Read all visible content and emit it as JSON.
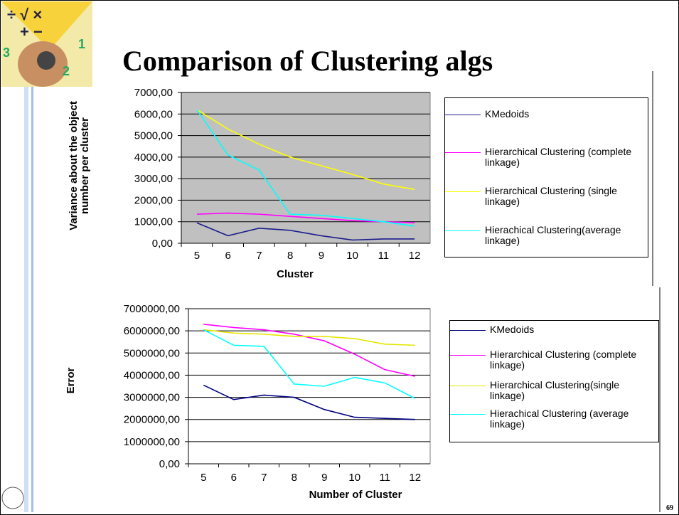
{
  "title": "Comparison of Clustering algs",
  "page_number": "69",
  "chart_data": [
    {
      "type": "line",
      "x_label": "Cluster",
      "y_label": "Variance about the object number per cluster",
      "categories": [
        "5",
        "6",
        "7",
        "8",
        "9",
        "10",
        "11",
        "12"
      ],
      "ylim": [
        0,
        7000
      ],
      "yticks": [
        {
          "value": 0,
          "label": "0,00"
        },
        {
          "value": 1000,
          "label": "1000,00"
        },
        {
          "value": 2000,
          "label": "2000,00"
        },
        {
          "value": 3000,
          "label": "3000,00"
        },
        {
          "value": 4000,
          "label": "4000,00"
        },
        {
          "value": 5000,
          "label": "5000,00"
        },
        {
          "value": 6000,
          "label": "6000,00"
        },
        {
          "value": 7000,
          "label": "7000,00"
        }
      ],
      "grid": true,
      "plot_background": "#c0c0c0",
      "series": [
        {
          "name": "KMedoids",
          "color": "#1c1c8c",
          "values": [
            950,
            350,
            700,
            600,
            350,
            150,
            200,
            200
          ]
        },
        {
          "name": "Hierarchical Clustering (complete linkage)",
          "color": "#ff00ff",
          "values": [
            1350,
            1400,
            1350,
            1250,
            1150,
            1050,
            1000,
            950
          ]
        },
        {
          "name": "Hierarchical Clustering (single linkage)",
          "color": "#ffff00",
          "values": [
            6200,
            5300,
            4600,
            4000,
            3600,
            3200,
            2750,
            2500
          ]
        },
        {
          "name": "Hierachical Clustering(average linkage)",
          "color": "#00ffff",
          "values": [
            6200,
            4100,
            3400,
            1350,
            1300,
            1150,
            1000,
            800
          ]
        }
      ]
    },
    {
      "type": "line",
      "x_label": "Number of Cluster",
      "y_label": "Error",
      "categories": [
        "5",
        "6",
        "7",
        "8",
        "9",
        "10",
        "11",
        "12"
      ],
      "ylim": [
        0,
        7000000
      ],
      "yticks": [
        {
          "value": 0,
          "label": "0,00"
        },
        {
          "value": 1000000,
          "label": "1000000,00"
        },
        {
          "value": 2000000,
          "label": "2000000,00"
        },
        {
          "value": 3000000,
          "label": "3000000,00"
        },
        {
          "value": 4000000,
          "label": "4000000,00"
        },
        {
          "value": 5000000,
          "label": "5000000,00"
        },
        {
          "value": 6000000,
          "label": "6000000,00"
        },
        {
          "value": 7000000,
          "label": "7000000,00"
        }
      ],
      "grid": true,
      "plot_background": "#ffffff",
      "series": [
        {
          "name": "KMedoids",
          "color": "#000080",
          "values": [
            3550000,
            2900000,
            3100000,
            3000000,
            2450000,
            2100000,
            2050000,
            2000000
          ]
        },
        {
          "name": "Hierarchical Clustering (complete linkage)",
          "color": "#ff00ff",
          "values": [
            6300000,
            6150000,
            6050000,
            5850000,
            5550000,
            4950000,
            4250000,
            3950000
          ]
        },
        {
          "name": "Hierarchical Clustering(single linkage)",
          "color": "#e6e600",
          "values": [
            6050000,
            5900000,
            5850000,
            5750000,
            5750000,
            5650000,
            5400000,
            5350000
          ]
        },
        {
          "name": "Hierachical Clustering (average linkage)",
          "color": "#00ffff",
          "values": [
            6050000,
            5350000,
            5300000,
            3600000,
            3500000,
            3900000,
            3650000,
            2950000
          ]
        }
      ]
    }
  ]
}
